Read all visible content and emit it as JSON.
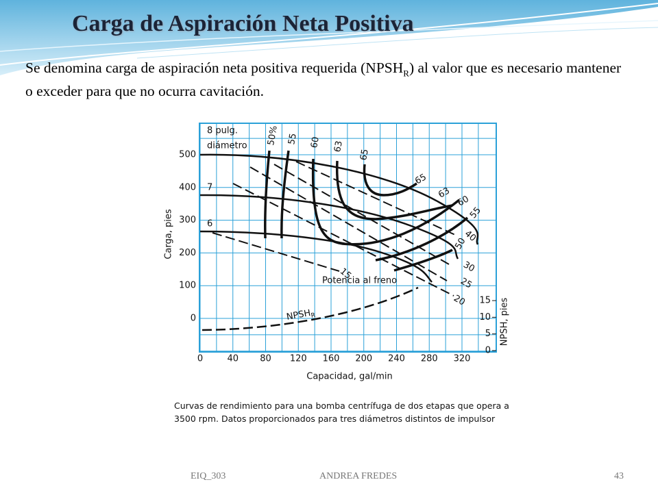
{
  "slide": {
    "title": "Carga de Aspiración Neta Positiva",
    "body": {
      "text_before": "Se denomina  carga de aspiración neta positiva  requerida  (NPSH",
      "subscript": "R",
      "text_after": ") al valor que es necesario mantener o exceder para que no ocurra cavitación."
    },
    "figure": {
      "x_axis": {
        "label": "Capacidad, gal/min",
        "ticks": [
          0,
          40,
          80,
          120,
          160,
          200,
          240,
          280,
          320
        ]
      },
      "y_axis": {
        "label": "Carga, pies",
        "ticks": [
          0,
          100,
          200,
          300,
          400,
          500
        ]
      },
      "y2_axis": {
        "label": "NPSH, pies",
        "ticks": [
          0,
          5,
          10,
          15
        ]
      },
      "diameter_labels": [
        "8 pulg.",
        "diámetro",
        "7",
        "6"
      ],
      "efficiency_labels": [
        "50%",
        "55",
        "60",
        "63",
        "65",
        "65",
        "63",
        "60",
        "55",
        "50"
      ],
      "power_labels": [
        "15",
        "20",
        "25",
        "30",
        "40"
      ],
      "power_title": "Potencia al freno",
      "npsh_label": {
        "text": "NPSH",
        "subscript": "R"
      },
      "caption": "Curvas de rendimiento para una bomba centrífuga de dos etapas que opera a 3500 rpm. Datos proporcionados para tres diámetros distintos de impulsor"
    },
    "footer": {
      "left": "EIQ_303",
      "center": "ANDREA FREDES",
      "page": "43"
    }
  }
}
